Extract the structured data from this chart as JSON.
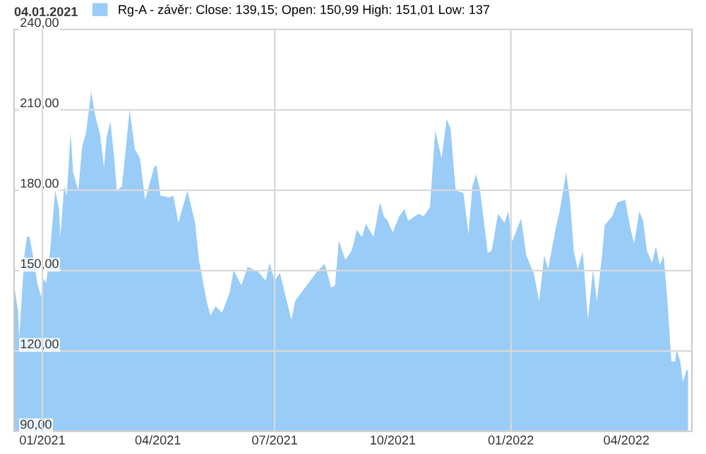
{
  "chart_data": {
    "type": "area",
    "annotations": [
      "04.01.2021"
    ],
    "x": [
      "2020-12-10",
      "2020-12-13",
      "2020-12-14",
      "2020-12-18",
      "2020-12-20",
      "2020-12-22",
      "2020-12-26",
      "2020-12-28",
      "2020-12-31",
      "2021-01-02",
      "2021-01-04",
      "2021-01-07",
      "2021-01-11",
      "2021-01-14",
      "2021-01-15",
      "2021-01-18",
      "2021-01-20",
      "2021-01-23",
      "2021-01-25",
      "2021-01-29",
      "2021-02-01",
      "2021-02-04",
      "2021-02-08",
      "2021-02-11",
      "2021-02-15",
      "2021-02-18",
      "2021-02-20",
      "2021-02-23",
      "2021-02-26",
      "2021-02-28",
      "2021-03-04",
      "2021-03-07",
      "2021-03-10",
      "2021-03-14",
      "2021-03-18",
      "2021-03-22",
      "2021-03-25",
      "2021-03-29",
      "2021-03-31",
      "2021-04-03",
      "2021-04-10",
      "2021-04-13",
      "2021-04-17",
      "2021-04-24",
      "2021-04-30",
      "2021-05-03",
      "2021-05-09",
      "2021-05-12",
      "2021-05-16",
      "2021-05-21",
      "2021-05-27",
      "2021-05-30",
      "2021-06-05",
      "2021-06-10",
      "2021-06-18",
      "2021-06-24",
      "2021-06-27",
      "2021-07-01",
      "2021-07-05",
      "2021-07-14",
      "2021-07-17",
      "2021-07-26",
      "2021-08-03",
      "2021-08-09",
      "2021-08-14",
      "2021-08-17",
      "2021-08-20",
      "2021-08-25",
      "2021-08-30",
      "2021-09-03",
      "2021-09-07",
      "2021-09-10",
      "2021-09-16",
      "2021-09-21",
      "2021-09-24",
      "2021-09-27",
      "2021-10-01",
      "2021-10-06",
      "2021-10-10",
      "2021-10-13",
      "2021-10-21",
      "2021-10-25",
      "2021-10-30",
      "2021-11-03",
      "2021-11-08",
      "2021-11-12",
      "2021-11-15",
      "2021-11-19",
      "2021-11-25",
      "2021-11-29",
      "2021-12-02",
      "2021-12-05",
      "2021-12-08",
      "2021-12-14",
      "2021-12-17",
      "2021-12-22",
      "2021-12-27",
      "2021-12-30",
      "2022-01-02",
      "2022-01-09",
      "2022-01-13",
      "2022-01-19",
      "2022-01-23",
      "2022-01-27",
      "2022-01-30",
      "2022-02-05",
      "2022-02-08",
      "2022-02-13",
      "2022-02-16",
      "2022-02-19",
      "2022-02-22",
      "2022-02-26",
      "2022-03-02",
      "2022-03-06",
      "2022-03-09",
      "2022-03-13",
      "2022-03-15",
      "2022-03-21",
      "2022-03-25",
      "2022-03-31",
      "2022-04-04",
      "2022-04-07",
      "2022-04-11",
      "2022-04-14",
      "2022-04-17",
      "2022-04-21",
      "2022-04-24",
      "2022-04-27",
      "2022-04-30",
      "2022-05-03",
      "2022-05-06",
      "2022-05-09",
      "2022-05-10",
      "2022-05-13",
      "2022-05-15",
      "2022-05-18",
      "2022-05-19"
    ],
    "series": [
      {
        "name": "Rg-A - závěr: Close: 139,15; Open: 150,99 High: 151,01 Low: 137",
        "color": "#99ccf7",
        "values": [
          144.5,
          135,
          124.7,
          155.7,
          162.6,
          162.6,
          152,
          145.4,
          140.2,
          147,
          145.4,
          157.4,
          179.9,
          173,
          162.6,
          181.5,
          178,
          201.4,
          186.7,
          179.9,
          196.2,
          201.4,
          216.9,
          208.3,
          200.6,
          188.5,
          199.7,
          205.7,
          191.9,
          179.9,
          181.5,
          195.4,
          210,
          195.4,
          191.9,
          176.4,
          181.5,
          188.5,
          189.3,
          178,
          177.3,
          178,
          167.8,
          179.9,
          167.8,
          154,
          138.5,
          133.3,
          136.7,
          134.2,
          141.9,
          150.2,
          144.5,
          151.4,
          149.6,
          146.2,
          152.9,
          146.2,
          149.2,
          131.6,
          138.8,
          144.5,
          149.6,
          152.6,
          143.6,
          144.5,
          161.2,
          154,
          157.4,
          165.2,
          162.6,
          167.4,
          162.6,
          175.5,
          170.3,
          168.6,
          164.3,
          170.3,
          173,
          168.6,
          171.2,
          170.3,
          173.8,
          202.3,
          191.9,
          206.6,
          203.1,
          179.9,
          179,
          163.5,
          181.5,
          185.9,
          179.9,
          156.6,
          157.4,
          171.2,
          167.8,
          172.1,
          160.9,
          169.5,
          155.7,
          148.8,
          138.5,
          155.7,
          150.5,
          166,
          172.1,
          186.7,
          176.4,
          157.4,
          150.5,
          157,
          131.6,
          150.5,
          138.5,
          155.7,
          166.9,
          170.3,
          175.5,
          176.4,
          166,
          160,
          172.1,
          168.6,
          157.4,
          152.9,
          159.1,
          152,
          155.7,
          138.5,
          116.1,
          116.1,
          120.4,
          116.1,
          108.4,
          113.2,
          112.2
        ]
      }
    ],
    "xlim": [
      "2020-12-10",
      "2022-05-22"
    ],
    "xticks": [
      {
        "value": "2021-01-01",
        "label": "01/2021"
      },
      {
        "value": "2021-04-01",
        "label": "04/2021"
      },
      {
        "value": "2021-07-01",
        "label": "07/2021"
      },
      {
        "value": "2021-10-01",
        "label": "10/2021"
      },
      {
        "value": "2022-01-01",
        "label": "01/2022"
      },
      {
        "value": "2022-04-01",
        "label": "04/2022"
      }
    ],
    "ylim": [
      90,
      240
    ],
    "yticks": [
      {
        "value": 90,
        "label": "90,00"
      },
      {
        "value": 120,
        "label": "120,00"
      },
      {
        "value": 150,
        "label": "150,00"
      },
      {
        "value": 180,
        "label": "180,00"
      },
      {
        "value": 210,
        "label": "210,00"
      },
      {
        "value": 240,
        "label": "240,00"
      }
    ],
    "grid": "y",
    "ref_lines": [
      {
        "axis": "x",
        "value": "2021-01-01",
        "color": "#d9d9d9"
      },
      {
        "axis": "x",
        "value": "2021-07-01",
        "color": "#d9d9d9"
      },
      {
        "axis": "x",
        "value": "2022-01-01",
        "color": "#d9d9d9"
      }
    ],
    "legend": "top"
  }
}
